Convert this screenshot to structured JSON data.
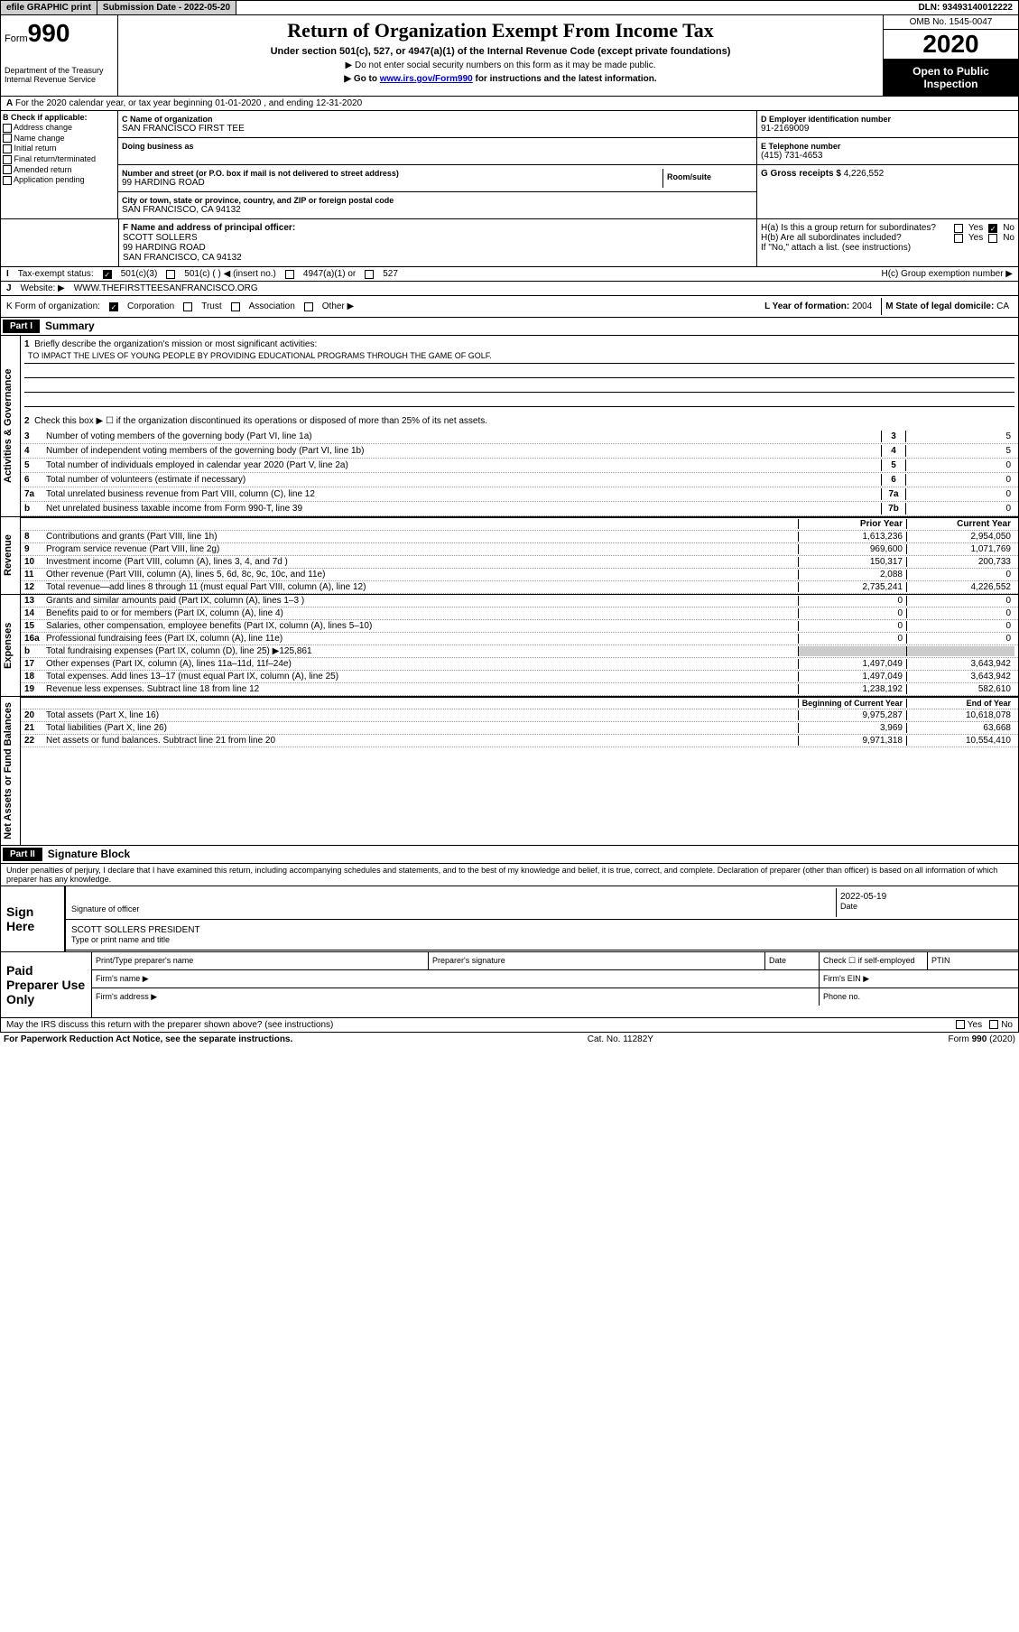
{
  "topbar": {
    "efile": "efile GRAPHIC print",
    "subdate_label": "Submission Date - ",
    "subdate": "2022-05-20",
    "dln_label": "DLN: ",
    "dln": "93493140012222"
  },
  "header": {
    "form_label": "Form",
    "form_num": "990",
    "dept": "Department of the Treasury\nInternal Revenue Service",
    "title": "Return of Organization Exempt From Income Tax",
    "subtitle": "Under section 501(c), 527, or 4947(a)(1) of the Internal Revenue Code (except private foundations)",
    "note1": "▶ Do not enter social security numbers on this form as it may be made public.",
    "note2_pre": "▶ Go to ",
    "note2_link": "www.irs.gov/Form990",
    "note2_post": " for instructions and the latest information.",
    "omb": "OMB No. 1545-0047",
    "year": "2020",
    "inspect": "Open to Public Inspection"
  },
  "row_a": "For the 2020 calendar year, or tax year beginning 01-01-2020    , and ending 12-31-2020",
  "box_b": {
    "label": "B Check if applicable:",
    "items": [
      "Address change",
      "Name change",
      "Initial return",
      "Final return/terminated",
      "Amended return",
      "Application pending"
    ]
  },
  "box_c": {
    "name_label": "C Name of organization",
    "name": "SAN FRANCISCO FIRST TEE",
    "dba_label": "Doing business as",
    "street_label": "Number and street (or P.O. box if mail is not delivered to street address)",
    "street": "99 HARDING ROAD",
    "room_label": "Room/suite",
    "city_label": "City or town, state or province, country, and ZIP or foreign postal code",
    "city": "SAN FRANCISCO, CA  94132"
  },
  "box_d": {
    "label": "D Employer identification number",
    "val": "91-2169009"
  },
  "box_e": {
    "label": "E Telephone number",
    "val": "(415) 731-4653"
  },
  "box_g": {
    "label": "G Gross receipts $ ",
    "val": "4,226,552"
  },
  "box_f": {
    "label": "F  Name and address of principal officer:",
    "line1": "SCOTT SOLLERS",
    "line2": "99 HARDING ROAD",
    "line3": "SAN FRANCISCO, CA  94132"
  },
  "box_h": {
    "a_label": "H(a)  Is this a group return for subordinates?",
    "b_label": "H(b)  Are all subordinates included?",
    "b_note": "If \"No,\" attach a list. (see instructions)",
    "c_label": "H(c)  Group exemption number ▶",
    "yes": "Yes",
    "no": "No"
  },
  "row_i": {
    "label": "Tax-exempt status:",
    "opts": [
      "501(c)(3)",
      "501(c) (    ) ◀ (insert no.)",
      "4947(a)(1) or",
      "527"
    ]
  },
  "row_j": {
    "label": "J",
    "text": "Website: ▶",
    "val": "WWW.THEFIRSTTEESANFRANCISCO.ORG"
  },
  "row_k": {
    "label": "K Form of organization:",
    "opts": [
      "Corporation",
      "Trust",
      "Association",
      "Other ▶"
    ]
  },
  "row_l": {
    "label": "L Year of formation: ",
    "val": "2004"
  },
  "row_m": {
    "label": "M State of legal domicile: ",
    "val": "CA"
  },
  "part1": {
    "header": "Part I",
    "title": "Summary"
  },
  "part2": {
    "header": "Part II",
    "title": "Signature Block"
  },
  "sections": {
    "gov": "Activities & Governance",
    "rev": "Revenue",
    "exp": "Expenses",
    "net": "Net Assets or Fund Balances"
  },
  "q1": {
    "label": "Briefly describe the organization's mission or most significant activities:",
    "val": "TO IMPACT THE LIVES OF YOUNG PEOPLE BY PROVIDING EDUCATIONAL PROGRAMS THROUGH THE GAME OF GOLF."
  },
  "q2": "Check this box ▶ ☐  if the organization discontinued its operations or disposed of more than 25% of its net assets.",
  "lines_single": [
    {
      "n": "3",
      "t": "Number of voting members of the governing body (Part VI, line 1a)",
      "box": "3",
      "v": "5"
    },
    {
      "n": "4",
      "t": "Number of independent voting members of the governing body (Part VI, line 1b)",
      "box": "4",
      "v": "5"
    },
    {
      "n": "5",
      "t": "Total number of individuals employed in calendar year 2020 (Part V, line 2a)",
      "box": "5",
      "v": "0"
    },
    {
      "n": "6",
      "t": "Total number of volunteers (estimate if necessary)",
      "box": "6",
      "v": "0"
    },
    {
      "n": "7a",
      "t": "Total unrelated business revenue from Part VIII, column (C), line 12",
      "box": "7a",
      "v": "0"
    },
    {
      "n": "b",
      "t": "Net unrelated business taxable income from Form 990-T, line 39",
      "box": "7b",
      "v": "0"
    }
  ],
  "col_headers": {
    "prior": "Prior Year",
    "current": "Current Year",
    "boy": "Beginning of Current Year",
    "eoy": "End of Year"
  },
  "rev_lines": [
    {
      "n": "8",
      "t": "Contributions and grants (Part VIII, line 1h)",
      "p": "1,613,236",
      "c": "2,954,050"
    },
    {
      "n": "9",
      "t": "Program service revenue (Part VIII, line 2g)",
      "p": "969,600",
      "c": "1,071,769"
    },
    {
      "n": "10",
      "t": "Investment income (Part VIII, column (A), lines 3, 4, and 7d )",
      "p": "150,317",
      "c": "200,733"
    },
    {
      "n": "11",
      "t": "Other revenue (Part VIII, column (A), lines 5, 6d, 8c, 9c, 10c, and 11e)",
      "p": "2,088",
      "c": "0"
    },
    {
      "n": "12",
      "t": "Total revenue—add lines 8 through 11 (must equal Part VIII, column (A), line 12)",
      "p": "2,735,241",
      "c": "4,226,552"
    }
  ],
  "exp_lines": [
    {
      "n": "13",
      "t": "Grants and similar amounts paid (Part IX, column (A), lines 1–3 )",
      "p": "0",
      "c": "0"
    },
    {
      "n": "14",
      "t": "Benefits paid to or for members (Part IX, column (A), line 4)",
      "p": "0",
      "c": "0"
    },
    {
      "n": "15",
      "t": "Salaries, other compensation, employee benefits (Part IX, column (A), lines 5–10)",
      "p": "0",
      "c": "0"
    },
    {
      "n": "16a",
      "t": "Professional fundraising fees (Part IX, column (A), line 11e)",
      "p": "0",
      "c": "0"
    }
  ],
  "line16b": {
    "n": "b",
    "t": "Total fundraising expenses (Part IX, column (D), line 25) ▶",
    "v": "125,861"
  },
  "exp_lines2": [
    {
      "n": "17",
      "t": "Other expenses (Part IX, column (A), lines 11a–11d, 11f–24e)",
      "p": "1,497,049",
      "c": "3,643,942"
    },
    {
      "n": "18",
      "t": "Total expenses. Add lines 13–17 (must equal Part IX, column (A), line 25)",
      "p": "1,497,049",
      "c": "3,643,942"
    },
    {
      "n": "19",
      "t": "Revenue less expenses. Subtract line 18 from line 12",
      "p": "1,238,192",
      "c": "582,610"
    }
  ],
  "net_lines": [
    {
      "n": "20",
      "t": "Total assets (Part X, line 16)",
      "p": "9,975,287",
      "c": "10,618,078"
    },
    {
      "n": "21",
      "t": "Total liabilities (Part X, line 26)",
      "p": "3,969",
      "c": "63,668"
    },
    {
      "n": "22",
      "t": "Net assets or fund balances. Subtract line 21 from line 20",
      "p": "9,971,318",
      "c": "10,554,410"
    }
  ],
  "sig": {
    "penalty": "Under penalties of perjury, I declare that I have examined this return, including accompanying schedules and statements, and to the best of my knowledge and belief, it is true, correct, and complete. Declaration of preparer (other than officer) is based on all information of which preparer has any knowledge.",
    "sign_here": "Sign Here",
    "sig_label": "Signature of officer",
    "date_label": "Date",
    "date_val": "2022-05-19",
    "name_val": "SCOTT SOLLERS PRESIDENT",
    "name_label": "Type or print name and title"
  },
  "prep": {
    "label": "Paid Preparer Use Only",
    "h1": "Print/Type preparer's name",
    "h2": "Preparer's signature",
    "h3": "Date",
    "h4_pre": "Check ☐ if self-employed",
    "h5": "PTIN",
    "firm_name": "Firm's name    ▶",
    "firm_ein": "Firm's EIN ▶",
    "firm_addr": "Firm's address ▶",
    "phone": "Phone no."
  },
  "discuss": "May the IRS discuss this return with the preparer shown above? (see instructions)",
  "footer": {
    "left": "For Paperwork Reduction Act Notice, see the separate instructions.",
    "mid": "Cat. No. 11282Y",
    "right_pre": "Form ",
    "right_b": "990",
    "right_post": " (2020)"
  }
}
